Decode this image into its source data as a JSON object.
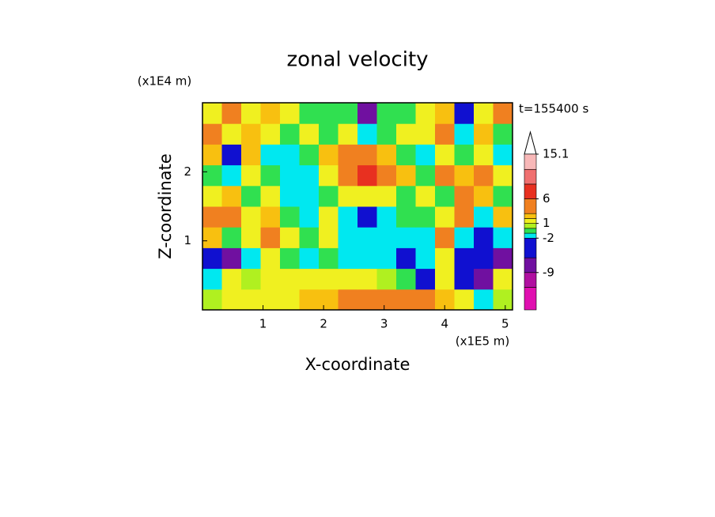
{
  "chart_data": {
    "type": "contour",
    "title": "zonal velocity",
    "x_label": "X-coordinate",
    "y_label": "Z-coordinate",
    "x_unit_label": "(x1E5 m)",
    "y_unit_label": "(x1E4 m)",
    "annotation": "t=155400 s",
    "xlim": [
      0,
      5.12
    ],
    "ylim": [
      0,
      3
    ],
    "xticks": [
      1,
      2,
      3,
      4,
      5
    ],
    "yticks": [
      1,
      2
    ],
    "x": [
      0.16,
      0.48,
      0.8,
      1.12,
      1.44,
      1.76,
      2.08,
      2.4,
      2.72,
      3.04,
      3.36,
      3.68,
      4.0,
      4.32,
      4.64,
      4.96
    ],
    "y": [
      0.15,
      0.45,
      0.75,
      1.05,
      1.35,
      1.65,
      1.95,
      2.25,
      2.55,
      2.85
    ],
    "values": [
      [
        0.5,
        1.5,
        1.5,
        1.5,
        1.5,
        2.5,
        2.5,
        3.5,
        4,
        4.5,
        4,
        3,
        2,
        1.5,
        -1.5,
        0.5
      ],
      [
        -1.5,
        1.5,
        0.5,
        1.5,
        1.5,
        1.5,
        1.5,
        1.5,
        1.5,
        0.5,
        -0.5,
        -3,
        1.5,
        -3,
        -7,
        1.5
      ],
      [
        -4,
        -7,
        -1.5,
        1.5,
        -0.5,
        -1.5,
        -0.5,
        -1.5,
        -1.5,
        -1.5,
        -4,
        -1.5,
        1.5,
        -4,
        -4,
        -7
      ],
      [
        2.5,
        -0.5,
        1.5,
        4,
        1.5,
        -0.5,
        1.5,
        -1.5,
        -1.5,
        -1.5,
        -1.5,
        -1.5,
        4,
        -1.5,
        -4,
        -1.5
      ],
      [
        4,
        4,
        1.5,
        2.5,
        -0.5,
        -1.5,
        1.5,
        -1.5,
        -4,
        -1.5,
        -0.5,
        -0.5,
        1.5,
        4,
        -1.5,
        2.5
      ],
      [
        1.5,
        2.5,
        -0.5,
        1.5,
        -1.5,
        -1.5,
        -0.5,
        1.5,
        1.5,
        1.5,
        -0.5,
        1.5,
        -0.5,
        4,
        2.5,
        -0.5
      ],
      [
        -0.5,
        -1.5,
        1.5,
        -0.5,
        -1.5,
        -1.5,
        1.5,
        4,
        7,
        4,
        2.5,
        -0.5,
        4,
        2.5,
        4,
        1.5
      ],
      [
        2.5,
        -4,
        2.5,
        -1.5,
        -1.5,
        -0.5,
        2.5,
        4,
        4,
        2.5,
        -0.5,
        -1.5,
        1.5,
        -0.5,
        1.5,
        -1.5
      ],
      [
        4,
        1.5,
        2.5,
        1.5,
        -0.5,
        1.5,
        -0.5,
        1.5,
        -1.5,
        -0.5,
        1.5,
        1.5,
        4,
        -1.5,
        2.5,
        -0.5
      ],
      [
        1.5,
        4,
        1.5,
        2.5,
        1.5,
        -0.5,
        -0.5,
        -0.5,
        -7,
        -0.5,
        -0.5,
        1.5,
        2.5,
        -4,
        1.5,
        4
      ]
    ],
    "colorbar": {
      "levels": [
        -16.6,
        -12,
        -9,
        -6,
        -2,
        -1,
        0,
        1,
        2,
        3,
        6,
        9,
        12,
        15.1
      ],
      "colors": [
        "#e010b0",
        "#b010a0",
        "#7010a0",
        "#1010d0",
        "#00e8f0",
        "#30e050",
        "#b0f020",
        "#f0f020",
        "#f8c010",
        "#f08020",
        "#e83020",
        "#f07070",
        "#f8b8b8"
      ],
      "ticks": [
        -9,
        -2,
        1,
        6,
        15.1
      ]
    }
  }
}
